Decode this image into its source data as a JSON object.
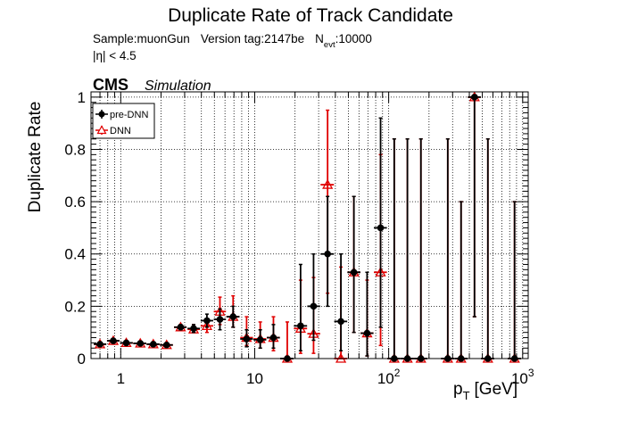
{
  "chart_data": {
    "type": "scatter",
    "title": "Duplicate Rate of Track Candidate",
    "info": {
      "sample": "Sample:muonGun",
      "version": "Version tag:2147be",
      "n_prefix": "N",
      "n_sub": "evt",
      "n_value": ":10000",
      "eta_cut": "|η| < 4.5"
    },
    "cms_label": "CMS",
    "simulation_label": "Simulation",
    "ylabel": "Duplicate Rate",
    "xlabel_main": "p",
    "xlabel_sub": "T",
    "xlabel_unit": "[GeV]",
    "x_scale": "log",
    "xlim": [
      0.6,
      1100
    ],
    "ylim": [
      0,
      1.02
    ],
    "grid": true,
    "legend_position": "top-left",
    "x_major_ticks": [
      {
        "v": 1,
        "base": "1",
        "exp": ""
      },
      {
        "v": 10,
        "base": "10",
        "exp": ""
      },
      {
        "v": 100,
        "base": "10",
        "exp": "2"
      },
      {
        "v": 1000,
        "base": "10",
        "exp": "3"
      }
    ],
    "y_ticks": [
      {
        "v": 0,
        "label": "0"
      },
      {
        "v": 0.2,
        "label": "0.2"
      },
      {
        "v": 0.4,
        "label": "0.4"
      },
      {
        "v": 0.6,
        "label": "0.6"
      },
      {
        "v": 0.8,
        "label": "0.8"
      },
      {
        "v": 1,
        "label": "1"
      }
    ],
    "series": [
      {
        "name": "pre-DNN",
        "color": "#000000",
        "marker": "filled-circle",
        "points": [
          {
            "x": 0.7,
            "xlo": 0.63,
            "xhi": 0.78,
            "y": 0.055,
            "ylo": 0.05,
            "yhi": 0.06
          },
          {
            "x": 0.88,
            "xlo": 0.79,
            "xhi": 0.98,
            "y": 0.068,
            "ylo": 0.062,
            "yhi": 0.074
          },
          {
            "x": 1.1,
            "xlo": 0.99,
            "xhi": 1.23,
            "y": 0.06,
            "ylo": 0.055,
            "yhi": 0.065
          },
          {
            "x": 1.4,
            "xlo": 1.24,
            "xhi": 1.55,
            "y": 0.058,
            "ylo": 0.053,
            "yhi": 0.063
          },
          {
            "x": 1.75,
            "xlo": 1.56,
            "xhi": 1.95,
            "y": 0.055,
            "ylo": 0.05,
            "yhi": 0.06
          },
          {
            "x": 2.2,
            "xlo": 1.96,
            "xhi": 2.45,
            "y": 0.052,
            "ylo": 0.047,
            "yhi": 0.057
          },
          {
            "x": 2.8,
            "xlo": 2.5,
            "xhi": 3.1,
            "y": 0.12,
            "ylo": 0.11,
            "yhi": 0.13
          },
          {
            "x": 3.5,
            "xlo": 3.15,
            "xhi": 3.9,
            "y": 0.115,
            "ylo": 0.1,
            "yhi": 0.13
          },
          {
            "x": 4.4,
            "xlo": 3.95,
            "xhi": 4.9,
            "y": 0.145,
            "ylo": 0.12,
            "yhi": 0.17
          },
          {
            "x": 5.5,
            "xlo": 4.95,
            "xhi": 6.1,
            "y": 0.15,
            "ylo": 0.11,
            "yhi": 0.19
          },
          {
            "x": 6.9,
            "xlo": 6.15,
            "xhi": 7.7,
            "y": 0.16,
            "ylo": 0.12,
            "yhi": 0.2
          },
          {
            "x": 8.7,
            "xlo": 7.8,
            "xhi": 9.7,
            "y": 0.075,
            "ylo": 0.045,
            "yhi": 0.11
          },
          {
            "x": 11,
            "xlo": 9.8,
            "xhi": 12.2,
            "y": 0.072,
            "ylo": 0.04,
            "yhi": 0.11
          },
          {
            "x": 13.8,
            "xlo": 12.3,
            "xhi": 15.4,
            "y": 0.08,
            "ylo": 0.04,
            "yhi": 0.13
          },
          {
            "x": 17.5,
            "xlo": 15.5,
            "xhi": 19.5,
            "y": 0.0,
            "ylo": 0.0,
            "yhi": 0.0
          },
          {
            "x": 22,
            "xlo": 19.6,
            "xhi": 24.6,
            "y": 0.125,
            "ylo": 0.03,
            "yhi": 0.36
          },
          {
            "x": 27.5,
            "xlo": 24.7,
            "xhi": 30.8,
            "y": 0.2,
            "ylo": 0.07,
            "yhi": 0.4
          },
          {
            "x": 35,
            "xlo": 31,
            "xhi": 39,
            "y": 0.4,
            "ylo": 0.2,
            "yhi": 0.62
          },
          {
            "x": 44,
            "xlo": 39.2,
            "xhi": 49,
            "y": 0.142,
            "ylo": 0.03,
            "yhi": 0.4
          },
          {
            "x": 55,
            "xlo": 49.2,
            "xhi": 61.5,
            "y": 0.33,
            "ylo": 0.1,
            "yhi": 0.62
          },
          {
            "x": 69,
            "xlo": 61.7,
            "xhi": 77,
            "y": 0.097,
            "ylo": 0.01,
            "yhi": 0.33
          },
          {
            "x": 87,
            "xlo": 77.5,
            "xhi": 97,
            "y": 0.5,
            "ylo": 0.12,
            "yhi": 0.92
          },
          {
            "x": 110,
            "xlo": 98,
            "xhi": 122,
            "y": 0.0,
            "ylo": 0.0,
            "yhi": 0.84
          },
          {
            "x": 138,
            "xlo": 123,
            "xhi": 154,
            "y": 0.0,
            "ylo": 0.0,
            "yhi": 0.84
          },
          {
            "x": 174,
            "xlo": 155,
            "xhi": 194,
            "y": 0.0,
            "ylo": 0.0,
            "yhi": 0.84
          },
          {
            "x": 276,
            "xlo": 246,
            "xhi": 308,
            "y": 0.0,
            "ylo": 0.0,
            "yhi": 0.84
          },
          {
            "x": 347,
            "xlo": 310,
            "xhi": 388,
            "y": 0.0,
            "ylo": 0.0,
            "yhi": 0.6
          },
          {
            "x": 437,
            "xlo": 390,
            "xhi": 488,
            "y": 1.0,
            "ylo": 0.16,
            "yhi": 1.0
          },
          {
            "x": 550,
            "xlo": 490,
            "xhi": 614,
            "y": 0.0,
            "ylo": 0.0,
            "yhi": 0.84
          },
          {
            "x": 870,
            "xlo": 776,
            "xhi": 972,
            "y": 0.0,
            "ylo": 0.0,
            "yhi": 0.6
          }
        ]
      },
      {
        "name": "DNN",
        "color": "#e00000",
        "marker": "open-triangle",
        "points": [
          {
            "x": 0.7,
            "xlo": 0.63,
            "xhi": 0.78,
            "y": 0.055,
            "ylo": 0.05,
            "yhi": 0.06
          },
          {
            "x": 0.88,
            "xlo": 0.79,
            "xhi": 0.98,
            "y": 0.068,
            "ylo": 0.062,
            "yhi": 0.074
          },
          {
            "x": 1.1,
            "xlo": 0.99,
            "xhi": 1.23,
            "y": 0.06,
            "ylo": 0.055,
            "yhi": 0.065
          },
          {
            "x": 1.4,
            "xlo": 1.24,
            "xhi": 1.55,
            "y": 0.058,
            "ylo": 0.053,
            "yhi": 0.063
          },
          {
            "x": 1.75,
            "xlo": 1.56,
            "xhi": 1.95,
            "y": 0.055,
            "ylo": 0.05,
            "yhi": 0.06
          },
          {
            "x": 2.2,
            "xlo": 1.96,
            "xhi": 2.45,
            "y": 0.052,
            "ylo": 0.047,
            "yhi": 0.057
          },
          {
            "x": 2.8,
            "xlo": 2.5,
            "xhi": 3.1,
            "y": 0.12,
            "ylo": 0.11,
            "yhi": 0.13
          },
          {
            "x": 3.5,
            "xlo": 3.15,
            "xhi": 3.9,
            "y": 0.112,
            "ylo": 0.1,
            "yhi": 0.13
          },
          {
            "x": 4.4,
            "xlo": 3.95,
            "xhi": 4.9,
            "y": 0.125,
            "ylo": 0.1,
            "yhi": 0.15
          },
          {
            "x": 5.5,
            "xlo": 4.95,
            "xhi": 6.1,
            "y": 0.18,
            "ylo": 0.13,
            "yhi": 0.235
          },
          {
            "x": 6.9,
            "xlo": 6.15,
            "xhi": 7.7,
            "y": 0.16,
            "ylo": 0.12,
            "yhi": 0.24
          },
          {
            "x": 8.7,
            "xlo": 7.8,
            "xhi": 9.7,
            "y": 0.08,
            "ylo": 0.05,
            "yhi": 0.16
          },
          {
            "x": 11,
            "xlo": 9.8,
            "xhi": 12.2,
            "y": 0.075,
            "ylo": 0.04,
            "yhi": 0.14
          },
          {
            "x": 13.8,
            "xlo": 12.3,
            "xhi": 15.4,
            "y": 0.08,
            "ylo": 0.03,
            "yhi": 0.16
          },
          {
            "x": 17.5,
            "xlo": 15.5,
            "xhi": 19.5,
            "y": 0.0,
            "ylo": 0.0,
            "yhi": 0.14
          },
          {
            "x": 22,
            "xlo": 19.6,
            "xhi": 24.6,
            "y": 0.115,
            "ylo": 0.02,
            "yhi": 0.3
          },
          {
            "x": 27.5,
            "xlo": 24.7,
            "xhi": 30.8,
            "y": 0.095,
            "ylo": 0.02,
            "yhi": 0.31
          },
          {
            "x": 35,
            "xlo": 31,
            "xhi": 39,
            "y": 0.665,
            "ylo": 0.25,
            "yhi": 0.95
          },
          {
            "x": 44,
            "xlo": 39.2,
            "xhi": 49,
            "y": 0.0,
            "ylo": 0.0,
            "yhi": 0.35
          },
          {
            "x": 55,
            "xlo": 49.2,
            "xhi": 61.5,
            "y": 0.33,
            "ylo": 0.1,
            "yhi": 0.62
          },
          {
            "x": 69,
            "xlo": 61.7,
            "xhi": 77,
            "y": 0.097,
            "ylo": 0.01,
            "yhi": 0.3
          },
          {
            "x": 87,
            "xlo": 77.5,
            "xhi": 97,
            "y": 0.33,
            "ylo": 0.05,
            "yhi": 0.78
          },
          {
            "x": 110,
            "xlo": 98,
            "xhi": 122,
            "y": 0.0,
            "ylo": 0.0,
            "yhi": 0.84
          },
          {
            "x": 138,
            "xlo": 123,
            "xhi": 154,
            "y": 0.0,
            "ylo": 0.0,
            "yhi": 0.84
          },
          {
            "x": 174,
            "xlo": 155,
            "xhi": 194,
            "y": 0.0,
            "ylo": 0.0,
            "yhi": 0.84
          },
          {
            "x": 276,
            "xlo": 246,
            "xhi": 308,
            "y": 0.0,
            "ylo": 0.0,
            "yhi": 0.84
          },
          {
            "x": 347,
            "xlo": 310,
            "xhi": 388,
            "y": 0.0,
            "ylo": 0.0,
            "yhi": 0.6
          },
          {
            "x": 437,
            "xlo": 390,
            "xhi": 488,
            "y": 1.0,
            "ylo": 0.16,
            "yhi": 1.0
          },
          {
            "x": 550,
            "xlo": 490,
            "xhi": 614,
            "y": 0.0,
            "ylo": 0.0,
            "yhi": 0.84
          },
          {
            "x": 870,
            "xlo": 776,
            "xhi": 972,
            "y": 0.0,
            "ylo": 0.0,
            "yhi": 0.6
          }
        ]
      }
    ]
  }
}
